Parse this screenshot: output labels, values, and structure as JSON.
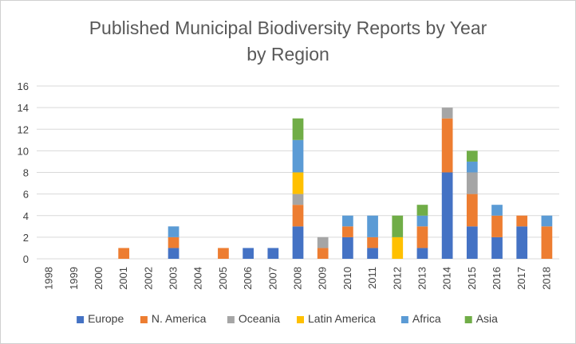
{
  "chart_data": {
    "type": "bar",
    "stacked": true,
    "title": "Published Municipal Biodiversity Reports by Year by Region",
    "title_lines": [
      "Published Municipal Biodiversity Reports by Year",
      "by Region"
    ],
    "xlabel": "",
    "ylabel": "",
    "ylim": [
      0,
      16
    ],
    "yticks": [
      0,
      2,
      4,
      6,
      8,
      10,
      12,
      14,
      16
    ],
    "grid": true,
    "legend_position": "bottom",
    "categories": [
      "1998",
      "1999",
      "2000",
      "2001",
      "2002",
      "2003",
      "2004",
      "2005",
      "2006",
      "2007",
      "2008",
      "2009",
      "2010",
      "2011",
      "2012",
      "2013",
      "2014",
      "2015",
      "2016",
      "2017",
      "2018"
    ],
    "series": [
      {
        "name": "Europe",
        "color": "#4472C4",
        "values": [
          0,
          0,
          0,
          0,
          0,
          1,
          0,
          0,
          1,
          1,
          3,
          0,
          2,
          1,
          0,
          1,
          8,
          3,
          2,
          3,
          0
        ]
      },
      {
        "name": "N. America",
        "color": "#ED7D31",
        "values": [
          0,
          0,
          0,
          1,
          0,
          1,
          0,
          1,
          0,
          0,
          2,
          1,
          1,
          1,
          0,
          2,
          5,
          3,
          2,
          1,
          3
        ]
      },
      {
        "name": "Oceania",
        "color": "#A5A5A5",
        "values": [
          0,
          0,
          0,
          0,
          0,
          0,
          0,
          0,
          0,
          0,
          1,
          1,
          0,
          0,
          0,
          0,
          1,
          2,
          0,
          0,
          0
        ]
      },
      {
        "name": "Latin America",
        "color": "#FFC000",
        "values": [
          0,
          0,
          0,
          0,
          0,
          0,
          0,
          0,
          0,
          0,
          2,
          0,
          0,
          0,
          2,
          0,
          0,
          0,
          0,
          0,
          0
        ]
      },
      {
        "name": "Africa",
        "color": "#5B9BD5",
        "values": [
          0,
          0,
          0,
          0,
          0,
          1,
          0,
          0,
          0,
          0,
          3,
          0,
          1,
          2,
          0,
          1,
          0,
          1,
          1,
          0,
          1
        ]
      },
      {
        "name": "Asia",
        "color": "#70AD47",
        "values": [
          0,
          0,
          0,
          0,
          0,
          0,
          0,
          0,
          0,
          0,
          2,
          0,
          0,
          0,
          2,
          1,
          0,
          1,
          0,
          0,
          0
        ]
      }
    ]
  }
}
